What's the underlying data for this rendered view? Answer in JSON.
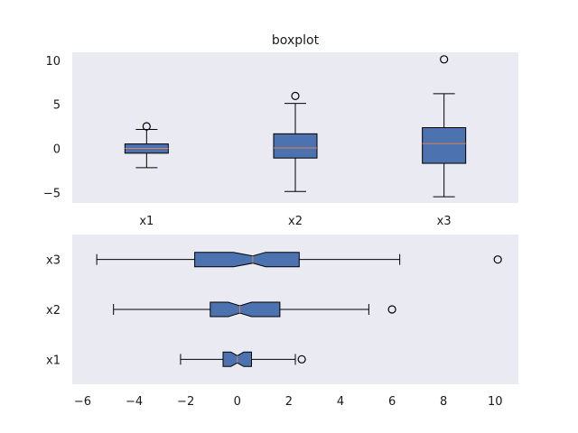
{
  "chart_data": [
    {
      "type": "boxplot",
      "orientation": "vertical",
      "notch": false,
      "title": "boxplot",
      "xlabel": "",
      "ylabel": "",
      "categories": [
        "x1",
        "x2",
        "x3"
      ],
      "ylim": [
        -6.2,
        10.9
      ],
      "yticks": [
        -5,
        0,
        5,
        10
      ],
      "yticklabels": [
        "−5",
        "0",
        "5",
        "10"
      ],
      "grid": false,
      "background": "#eaeaf2",
      "box_color": "#4c72b0",
      "median_color": "#dd8452",
      "boxes": [
        {
          "name": "x1",
          "whislo": -2.2,
          "q1": -0.55,
          "med": 0.0,
          "q3": 0.5,
          "whishi": 2.15,
          "fliers": [
            2.5
          ]
        },
        {
          "name": "x2",
          "whislo": -4.9,
          "q1": -1.1,
          "med": 0.05,
          "q3": 1.65,
          "whishi": 5.1,
          "fliers": [
            5.95
          ]
        },
        {
          "name": "x3",
          "whislo": -5.5,
          "q1": -1.7,
          "med": 0.55,
          "q3": 2.35,
          "whishi": 6.2,
          "fliers": [
            10.1
          ]
        }
      ]
    },
    {
      "type": "boxplot",
      "orientation": "horizontal",
      "notch": true,
      "title": "",
      "xlabel": "",
      "ylabel": "",
      "categories": [
        "x1",
        "x2",
        "x3"
      ],
      "xlim": [
        -6.4,
        10.9
      ],
      "xticks": [
        -6,
        -4,
        -2,
        0,
        2,
        4,
        6,
        8,
        10
      ],
      "xticklabels": [
        "−6",
        "−4",
        "−2",
        "0",
        "2",
        "4",
        "6",
        "8",
        "10"
      ],
      "grid": false,
      "background": "#eaeaf2",
      "box_color": "#4c72b0",
      "median_color": "#dd8452",
      "boxes": [
        {
          "name": "x1",
          "whislo": -2.2,
          "q1": -0.55,
          "med": 0.0,
          "q3": 0.55,
          "whishi": 2.25,
          "fliers": [
            2.5
          ],
          "notch_lo": -0.25,
          "notch_hi": 0.25
        },
        {
          "name": "x2",
          "whislo": -4.8,
          "q1": -1.05,
          "med": 0.1,
          "q3": 1.65,
          "whishi": 5.1,
          "fliers": [
            6.0
          ],
          "notch_lo": -0.35,
          "notch_hi": 0.55
        },
        {
          "name": "x3",
          "whislo": -5.45,
          "q1": -1.65,
          "med": 0.6,
          "q3": 2.4,
          "whishi": 6.3,
          "fliers": [
            10.1
          ],
          "notch_lo": -0.15,
          "notch_hi": 1.1
        }
      ]
    }
  ]
}
